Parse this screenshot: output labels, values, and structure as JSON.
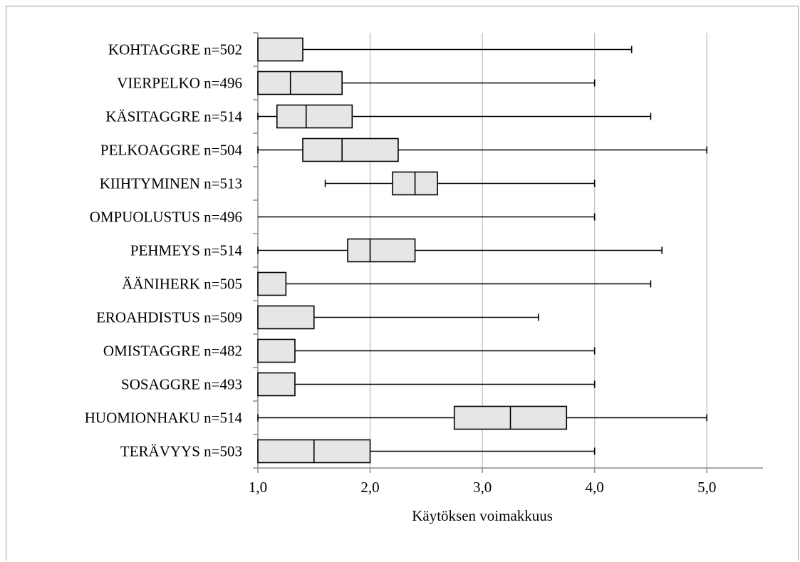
{
  "chart_data": {
    "type": "boxplot",
    "orientation": "horizontal",
    "xlabel": "Käytöksen voimakkuus",
    "xlim": [
      1.0,
      5.5
    ],
    "xticks": [
      1.0,
      2.0,
      3.0,
      4.0,
      5.0
    ],
    "xtick_labels": [
      "1,0",
      "2,0",
      "3,0",
      "4,0",
      "5,0"
    ],
    "grid": "vertical",
    "box_color": "#e6e6e6",
    "categories": [
      {
        "label": "KOHTAGGRE n=502",
        "min": 1.0,
        "q1": 1.0,
        "median": 1.0,
        "q3": 1.4,
        "max": 4.33
      },
      {
        "label": "VIERPELKO n=496",
        "min": 1.0,
        "q1": 1.0,
        "median": 1.29,
        "q3": 1.75,
        "max": 4.0
      },
      {
        "label": "KÄSITAGGRE n=514",
        "min": 1.0,
        "q1": 1.17,
        "median": 1.43,
        "q3": 1.84,
        "max": 4.5
      },
      {
        "label": "PELKOAGGRE n=504",
        "min": 1.0,
        "q1": 1.4,
        "median": 1.75,
        "q3": 2.25,
        "max": 5.0
      },
      {
        "label": "KIIHTYMINEN n=513",
        "min": 1.6,
        "q1": 2.2,
        "median": 2.4,
        "q3": 2.6,
        "max": 4.0
      },
      {
        "label": "OMPUOLUSTUS n=496",
        "min": 1.0,
        "q1": 1.0,
        "median": 1.0,
        "q3": 1.0,
        "max": 4.0
      },
      {
        "label": "PEHMEYS n=514",
        "min": 1.0,
        "q1": 1.8,
        "median": 2.0,
        "q3": 2.4,
        "max": 4.6
      },
      {
        "label": "ÄÄNIHERK n=505",
        "min": 1.0,
        "q1": 1.0,
        "median": 1.0,
        "q3": 1.25,
        "max": 4.5
      },
      {
        "label": "EROAHDISTUS n=509",
        "min": 1.0,
        "q1": 1.0,
        "median": 1.0,
        "q3": 1.5,
        "max": 3.5
      },
      {
        "label": "OMISTAGGRE n=482",
        "min": 1.0,
        "q1": 1.0,
        "median": 1.0,
        "q3": 1.33,
        "max": 4.0
      },
      {
        "label": "SOSAGGRE n=493",
        "min": 1.0,
        "q1": 1.0,
        "median": 1.0,
        "q3": 1.33,
        "max": 4.0
      },
      {
        "label": "HUOMIONHAKU n=514",
        "min": 1.0,
        "q1": 2.75,
        "median": 3.25,
        "q3": 3.75,
        "max": 5.0
      },
      {
        "label": "TERÄVYYS n=503",
        "min": 1.0,
        "q1": 1.0,
        "median": 1.5,
        "q3": 2.0,
        "max": 4.0
      }
    ]
  }
}
